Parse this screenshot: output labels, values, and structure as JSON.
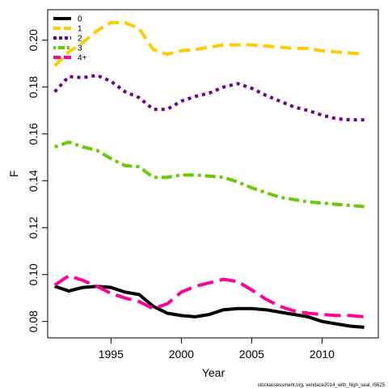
{
  "chart_data": {
    "type": "line",
    "xlabel": "Year",
    "ylabel": "F",
    "xlim": [
      1990.5,
      2014
    ],
    "ylim": [
      0.073,
      0.213
    ],
    "xticks": [
      1995,
      2000,
      2005,
      2010
    ],
    "yticks": [
      0.08,
      0.1,
      0.12,
      0.14,
      0.16,
      0.18,
      0.2
    ],
    "ytick_labels": [
      "0.08",
      "0.10",
      "0.12",
      "0.14",
      "0.16",
      "0.18",
      "0.20"
    ],
    "legend_position": "top-left",
    "footer": "stockassessment.org, vendace2014_with_high_seal, r5625",
    "x": [
      1991,
      1992,
      1993,
      1994,
      1995,
      1996,
      1997,
      1998,
      1999,
      2000,
      2001,
      2002,
      2003,
      2004,
      2005,
      2006,
      2007,
      2008,
      2009,
      2010,
      2011,
      2012,
      2013
    ],
    "series": [
      {
        "name": "0",
        "color": "#000000",
        "dash": "solid",
        "values": [
          0.095,
          0.093,
          0.0945,
          0.095,
          0.0945,
          0.0925,
          0.0915,
          0.0865,
          0.0835,
          0.0825,
          0.082,
          0.083,
          0.085,
          0.0855,
          0.0855,
          0.085,
          0.084,
          0.083,
          0.082,
          0.08,
          0.079,
          0.078,
          0.0775
        ]
      },
      {
        "name": "1",
        "color": "#ffcc00",
        "dash": "dashed",
        "values": [
          0.189,
          0.195,
          0.199,
          0.204,
          0.2075,
          0.2075,
          0.205,
          0.196,
          0.194,
          0.1955,
          0.196,
          0.197,
          0.198,
          0.198,
          0.198,
          0.1975,
          0.197,
          0.1965,
          0.1965,
          0.1955,
          0.195,
          0.1945,
          0.194
        ]
      },
      {
        "name": "2",
        "color": "#660099",
        "dash": "dotted",
        "values": [
          0.178,
          0.1845,
          0.184,
          0.185,
          0.1825,
          0.178,
          0.1755,
          0.1705,
          0.1705,
          0.174,
          0.176,
          0.1775,
          0.18,
          0.1815,
          0.1795,
          0.1765,
          0.174,
          0.1715,
          0.17,
          0.168,
          0.1665,
          0.166,
          0.166
        ]
      },
      {
        "name": "3",
        "color": "#66cc00",
        "dash": "dotdash",
        "values": [
          0.1545,
          0.1565,
          0.1545,
          0.153,
          0.1495,
          0.1465,
          0.146,
          0.1415,
          0.1415,
          0.1425,
          0.1425,
          0.142,
          0.1415,
          0.1395,
          0.137,
          0.135,
          0.133,
          0.132,
          0.131,
          0.1305,
          0.13,
          0.1295,
          0.129
        ]
      },
      {
        "name": "4+",
        "color": "#ff0099",
        "dash": "longdash",
        "values": [
          0.0955,
          0.0995,
          0.0975,
          0.095,
          0.092,
          0.09,
          0.0885,
          0.0855,
          0.0875,
          0.0925,
          0.095,
          0.0965,
          0.098,
          0.097,
          0.0935,
          0.0895,
          0.0865,
          0.0845,
          0.0835,
          0.083,
          0.0825,
          0.0825,
          0.082
        ]
      }
    ]
  }
}
